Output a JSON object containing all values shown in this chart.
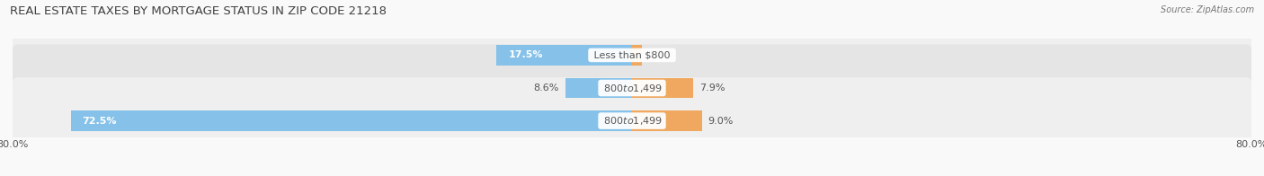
{
  "title": "REAL ESTATE TAXES BY MORTGAGE STATUS IN ZIP CODE 21218",
  "source": "Source: ZipAtlas.com",
  "categories": [
    "Less than $800",
    "$800 to $1,499",
    "$800 to $1,499"
  ],
  "without_mortgage": [
    17.5,
    8.6,
    72.5
  ],
  "with_mortgage": [
    1.3,
    7.9,
    9.0
  ],
  "xlim": [
    -80,
    80
  ],
  "color_without": "#85C1E9",
  "color_with": "#F0A860",
  "bar_height": 0.62,
  "row_bg_colors": [
    "#EFEFEF",
    "#E5E5E5",
    "#EFEFEF"
  ],
  "row_bg_alpha": 1.0,
  "label_fontsize": 8.0,
  "title_fontsize": 9.5,
  "legend_fontsize": 8.5,
  "value_fontsize": 8.0,
  "title_color": "#404040",
  "text_color": "#555555",
  "source_color": "#777777",
  "tick_label_color": "#555555",
  "center_label_bg": "#FFFFFF",
  "fig_bg": "#F9F9F9"
}
